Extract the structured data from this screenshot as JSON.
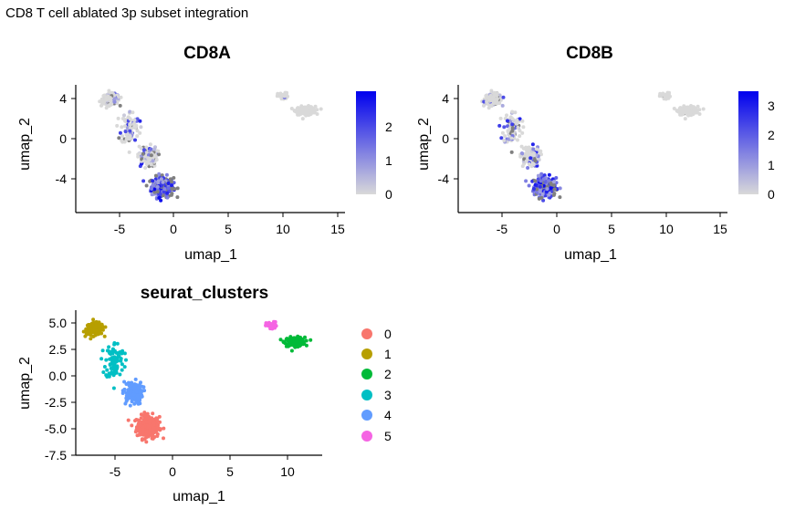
{
  "page_title": "CD8 T cell ablated 3p subset integration",
  "colors": {
    "feature_low": "#d9d9d9",
    "feature_high": "#0000ee",
    "clusters": [
      "#f8766d",
      "#b79f00",
      "#00ba38",
      "#00bfc4",
      "#619cff",
      "#f564e3"
    ]
  },
  "chart_data": [
    {
      "type": "scatter",
      "title": "CD8A",
      "xlabel": "umap_1",
      "ylabel": "umap_2",
      "xticks": [
        "-5",
        "0",
        "5",
        "10",
        "15"
      ],
      "yticks": [
        "4",
        "0",
        "-4"
      ],
      "xlim": [
        -9,
        15.5
      ],
      "ylim": [
        -7.5,
        5.8
      ],
      "legend": {
        "type": "colorbar",
        "position": "right",
        "ticks": [
          "0",
          "1",
          "2"
        ],
        "max": 3.0
      }
    },
    {
      "type": "scatter",
      "title": "CD8B",
      "xlabel": "umap_1",
      "ylabel": "umap_2",
      "xticks": [
        "-5",
        "0",
        "5",
        "10",
        "15"
      ],
      "yticks": [
        "4",
        "0",
        "-4"
      ],
      "xlim": [
        -9,
        15.5
      ],
      "ylim": [
        -7.5,
        5.8
      ],
      "legend": {
        "type": "colorbar",
        "position": "right",
        "ticks": [
          "0",
          "1",
          "2",
          "3"
        ],
        "max": 3.5
      }
    },
    {
      "type": "scatter",
      "title": "seurat_clusters",
      "xlabel": "umap_1",
      "ylabel": "umap_2",
      "xticks": [
        "-5",
        "0",
        "5",
        "10"
      ],
      "yticks": [
        "5.0",
        "2.5",
        "0.0",
        "-2.5",
        "-5.0",
        "-7.5"
      ],
      "xlim": [
        -7.5,
        14.5
      ],
      "ylim": [
        -7.5,
        5.8
      ],
      "legend": {
        "type": "categorical",
        "position": "right",
        "entries": [
          "0",
          "1",
          "2",
          "3",
          "4",
          "5"
        ]
      },
      "clusters": [
        {
          "label": "0",
          "center": [
            -1.2,
            -5.0
          ],
          "spread": [
            0.85,
            0.9
          ],
          "count": 260
        },
        {
          "label": "1",
          "center": [
            -6.0,
            4.2
          ],
          "spread": [
            0.65,
            0.45
          ],
          "count": 200
        },
        {
          "label": "2",
          "center": [
            12.1,
            3.0
          ],
          "spread": [
            0.75,
            0.35
          ],
          "count": 170
        },
        {
          "label": "3",
          "center": [
            -4.2,
            1.2
          ],
          "spread": [
            0.7,
            1.5
          ],
          "count": 90
        },
        {
          "label": "4",
          "center": [
            -2.6,
            -1.8
          ],
          "spread": [
            0.75,
            0.9
          ],
          "count": 110
        },
        {
          "label": "5",
          "center": [
            10.0,
            4.5
          ],
          "spread": [
            0.4,
            0.3
          ],
          "count": 45
        }
      ]
    }
  ]
}
